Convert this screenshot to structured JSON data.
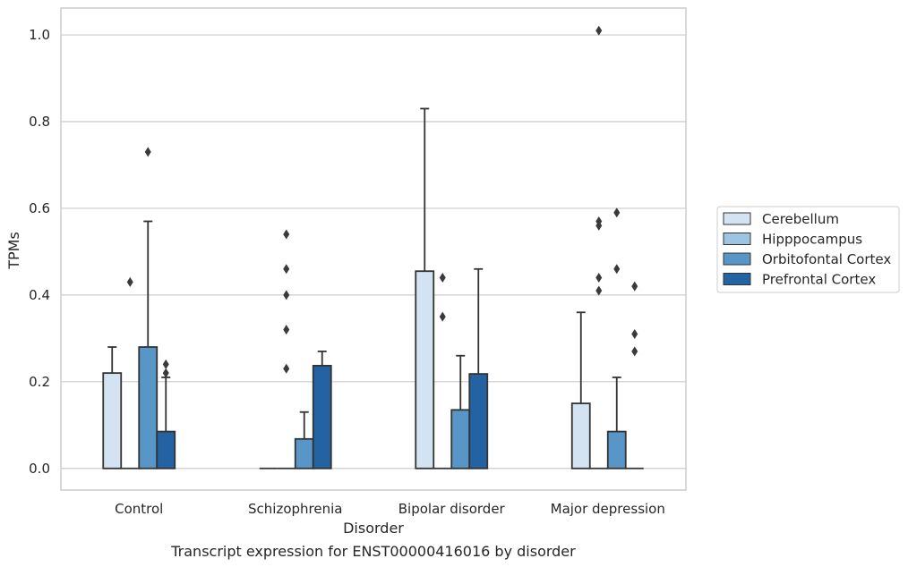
{
  "chart_data": {
    "type": "bar",
    "caption": "Transcript expression for ENST00000416016 by disorder",
    "xlabel": "Disorder",
    "ylabel": "TPMs",
    "ylim": [
      -0.05,
      1.062
    ],
    "yticks": [
      0.0,
      0.2,
      0.4,
      0.6,
      0.8,
      1.0
    ],
    "ytick_labels": [
      "0.0",
      "0.2",
      "0.4",
      "0.6",
      "0.8",
      "1.0"
    ],
    "categories": [
      "Control",
      "Schizophrenia",
      "Bipolar disorder",
      "Major depression"
    ],
    "grid": "horizontal",
    "legend_position": "right",
    "series": [
      {
        "name": "Cerebellum",
        "color": "#d3e3f2",
        "values": [
          0.22,
          0.0,
          0.455,
          0.15
        ],
        "whisker": [
          0.28,
          null,
          0.83,
          0.36
        ],
        "outliers": [
          [],
          [],
          [],
          []
        ]
      },
      {
        "name": "Hipppocampus",
        "color": "#9dc4e0",
        "values": [
          0.0,
          0.0,
          0.0,
          0.0
        ],
        "whisker": [
          null,
          null,
          null,
          null
        ],
        "outliers": [
          [
            0.43
          ],
          [
            0.23,
            0.32,
            0.4,
            0.46,
            0.54
          ],
          [
            0.35,
            0.44
          ],
          [
            0.41,
            0.44,
            0.56,
            0.57,
            1.01
          ]
        ]
      },
      {
        "name": "Orbitofontal Cortex",
        "color": "#5796c6",
        "values": [
          0.28,
          0.068,
          0.135,
          0.085
        ],
        "whisker": [
          0.57,
          0.13,
          0.26,
          0.21
        ],
        "outliers": [
          [
            0.73
          ],
          [],
          [],
          [
            0.46,
            0.59
          ]
        ]
      },
      {
        "name": "Prefrontal Cortex",
        "color": "#2362a3",
        "values": [
          0.085,
          0.237,
          0.218,
          0.0
        ],
        "whisker": [
          0.21,
          0.27,
          0.46,
          null
        ],
        "outliers": [
          [
            0.22,
            0.24
          ],
          [],
          [],
          [
            0.27,
            0.31,
            0.42
          ]
        ]
      }
    ]
  },
  "colors": {
    "edge": "#333333",
    "grid": "#cccccc",
    "frame": "#cccccc"
  }
}
